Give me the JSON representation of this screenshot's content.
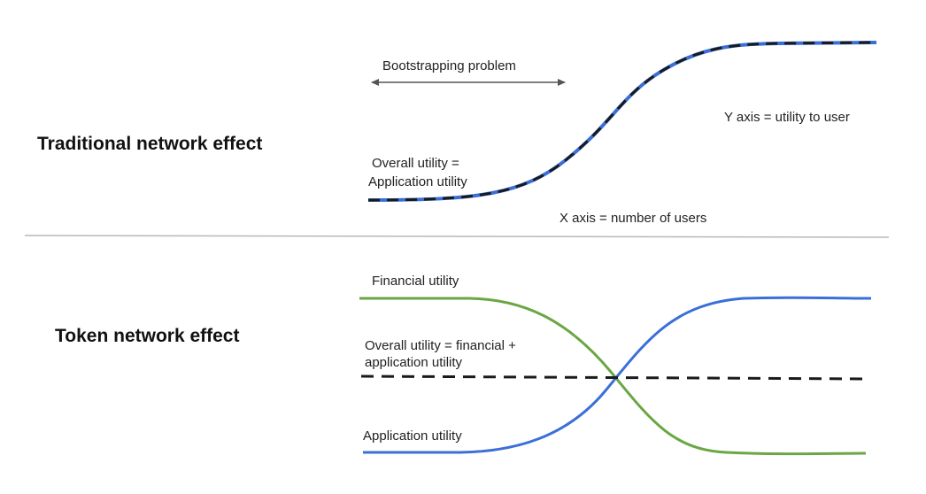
{
  "top": {
    "title": "Traditional network effect",
    "bootstrapping_label": "Bootstrapping problem",
    "y_axis_label": "Y axis = utility to user",
    "x_axis_label": "X axis = number of users",
    "curve_label_line1": "Overall utility =",
    "curve_label_line2": "Application utility"
  },
  "bottom": {
    "title": "Token network effect",
    "financial_label": "Financial utility",
    "overall_label_line1": "Overall utility = financial +",
    "overall_label_line2": "application utility",
    "application_label": "Application utility"
  },
  "colors": {
    "blue": "#3b6fd8",
    "green": "#6aa744",
    "dashed": "#1a1a1a",
    "divider": "#b8b8b8",
    "arrow": "#555555"
  }
}
